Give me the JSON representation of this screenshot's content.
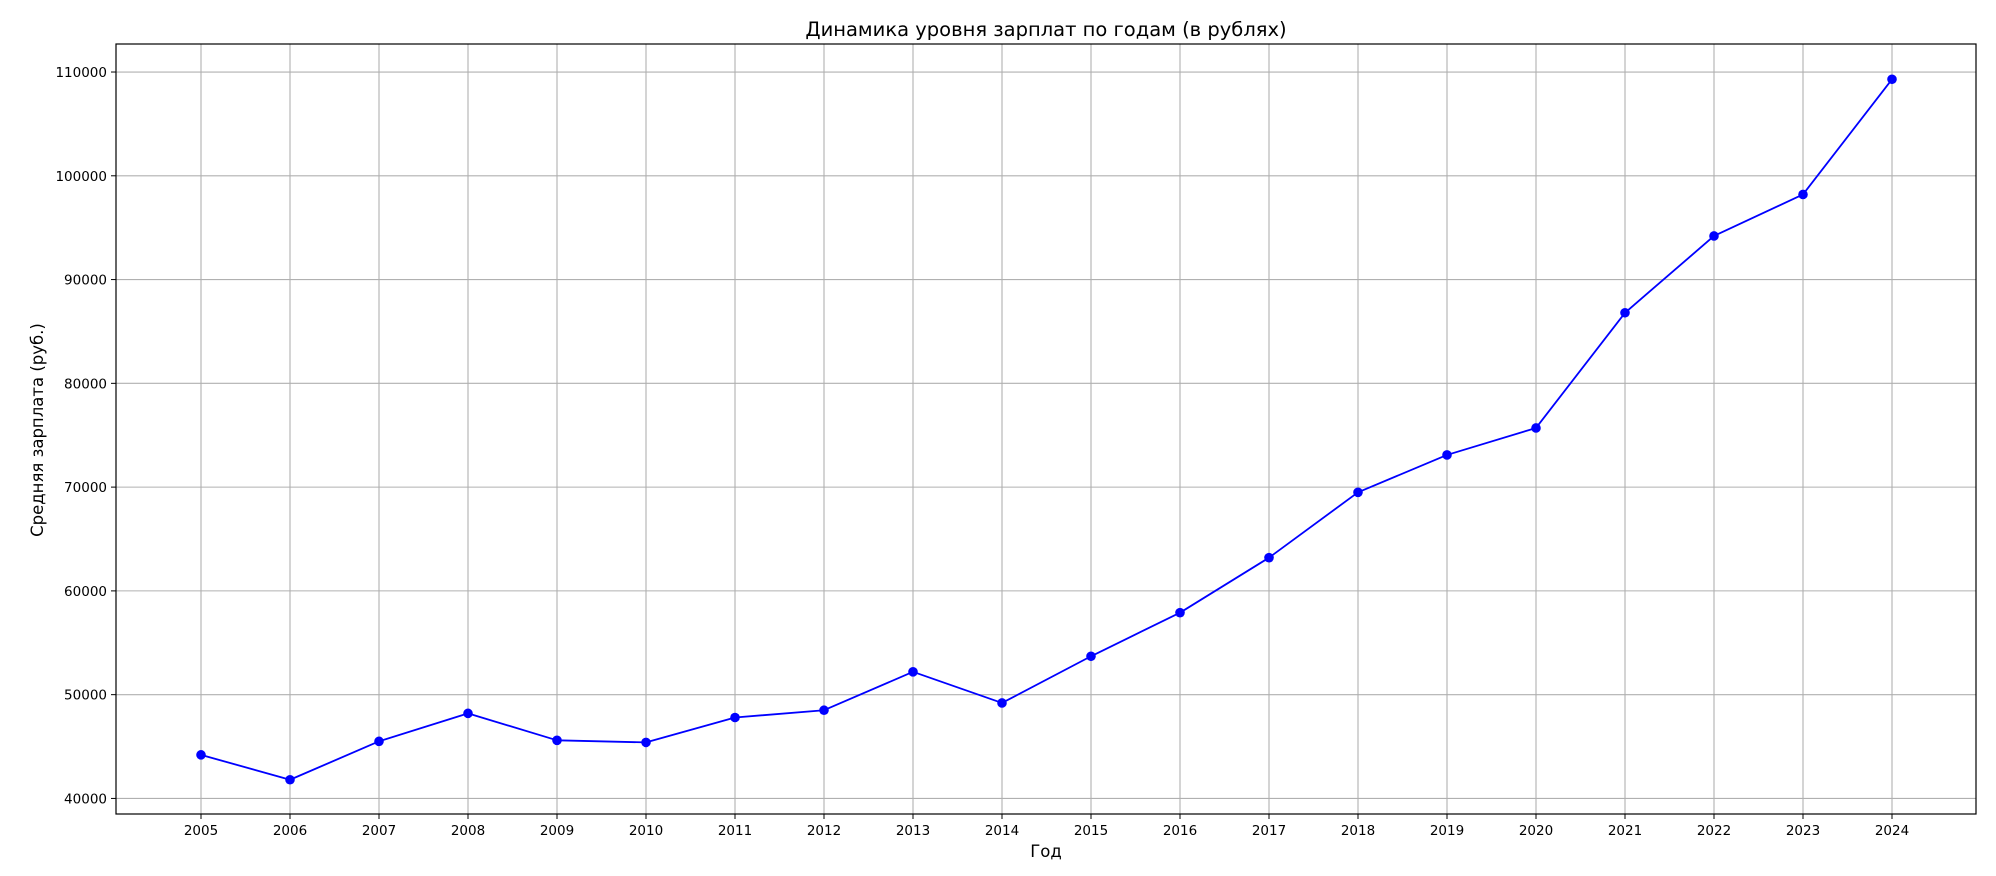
{
  "chart_data": {
    "type": "line",
    "title": "Динамика уровня зарплат по годам (в рублях)",
    "xlabel": "Год",
    "ylabel": "Средняя зарплата (руб.)",
    "x": [
      "2005",
      "2006",
      "2007",
      "2008",
      "2009",
      "2010",
      "2011",
      "2012",
      "2013",
      "2014",
      "2015",
      "2016",
      "2017",
      "2018",
      "2019",
      "2020",
      "2021",
      "2022",
      "2023",
      "2024"
    ],
    "series": [
      {
        "values": [
          44200,
          41800,
          45500,
          48200,
          45600,
          45400,
          47800,
          48500,
          52200,
          49200,
          53700,
          57900,
          63200,
          69500,
          73100,
          75700,
          86800,
          94200,
          98200,
          109300
        ],
        "color": "#0000ff",
        "marker": "circle"
      }
    ],
    "yticks": [
      40000,
      50000,
      60000,
      70000,
      80000,
      90000,
      100000,
      110000
    ],
    "ytick_labels": [
      "40000",
      "50000",
      "60000",
      "70000",
      "80000",
      "90000",
      "100000",
      "110000"
    ],
    "ylim": [
      38500,
      112700
    ],
    "grid": true,
    "grid_color": "#b0b0b0",
    "legend": "none"
  }
}
